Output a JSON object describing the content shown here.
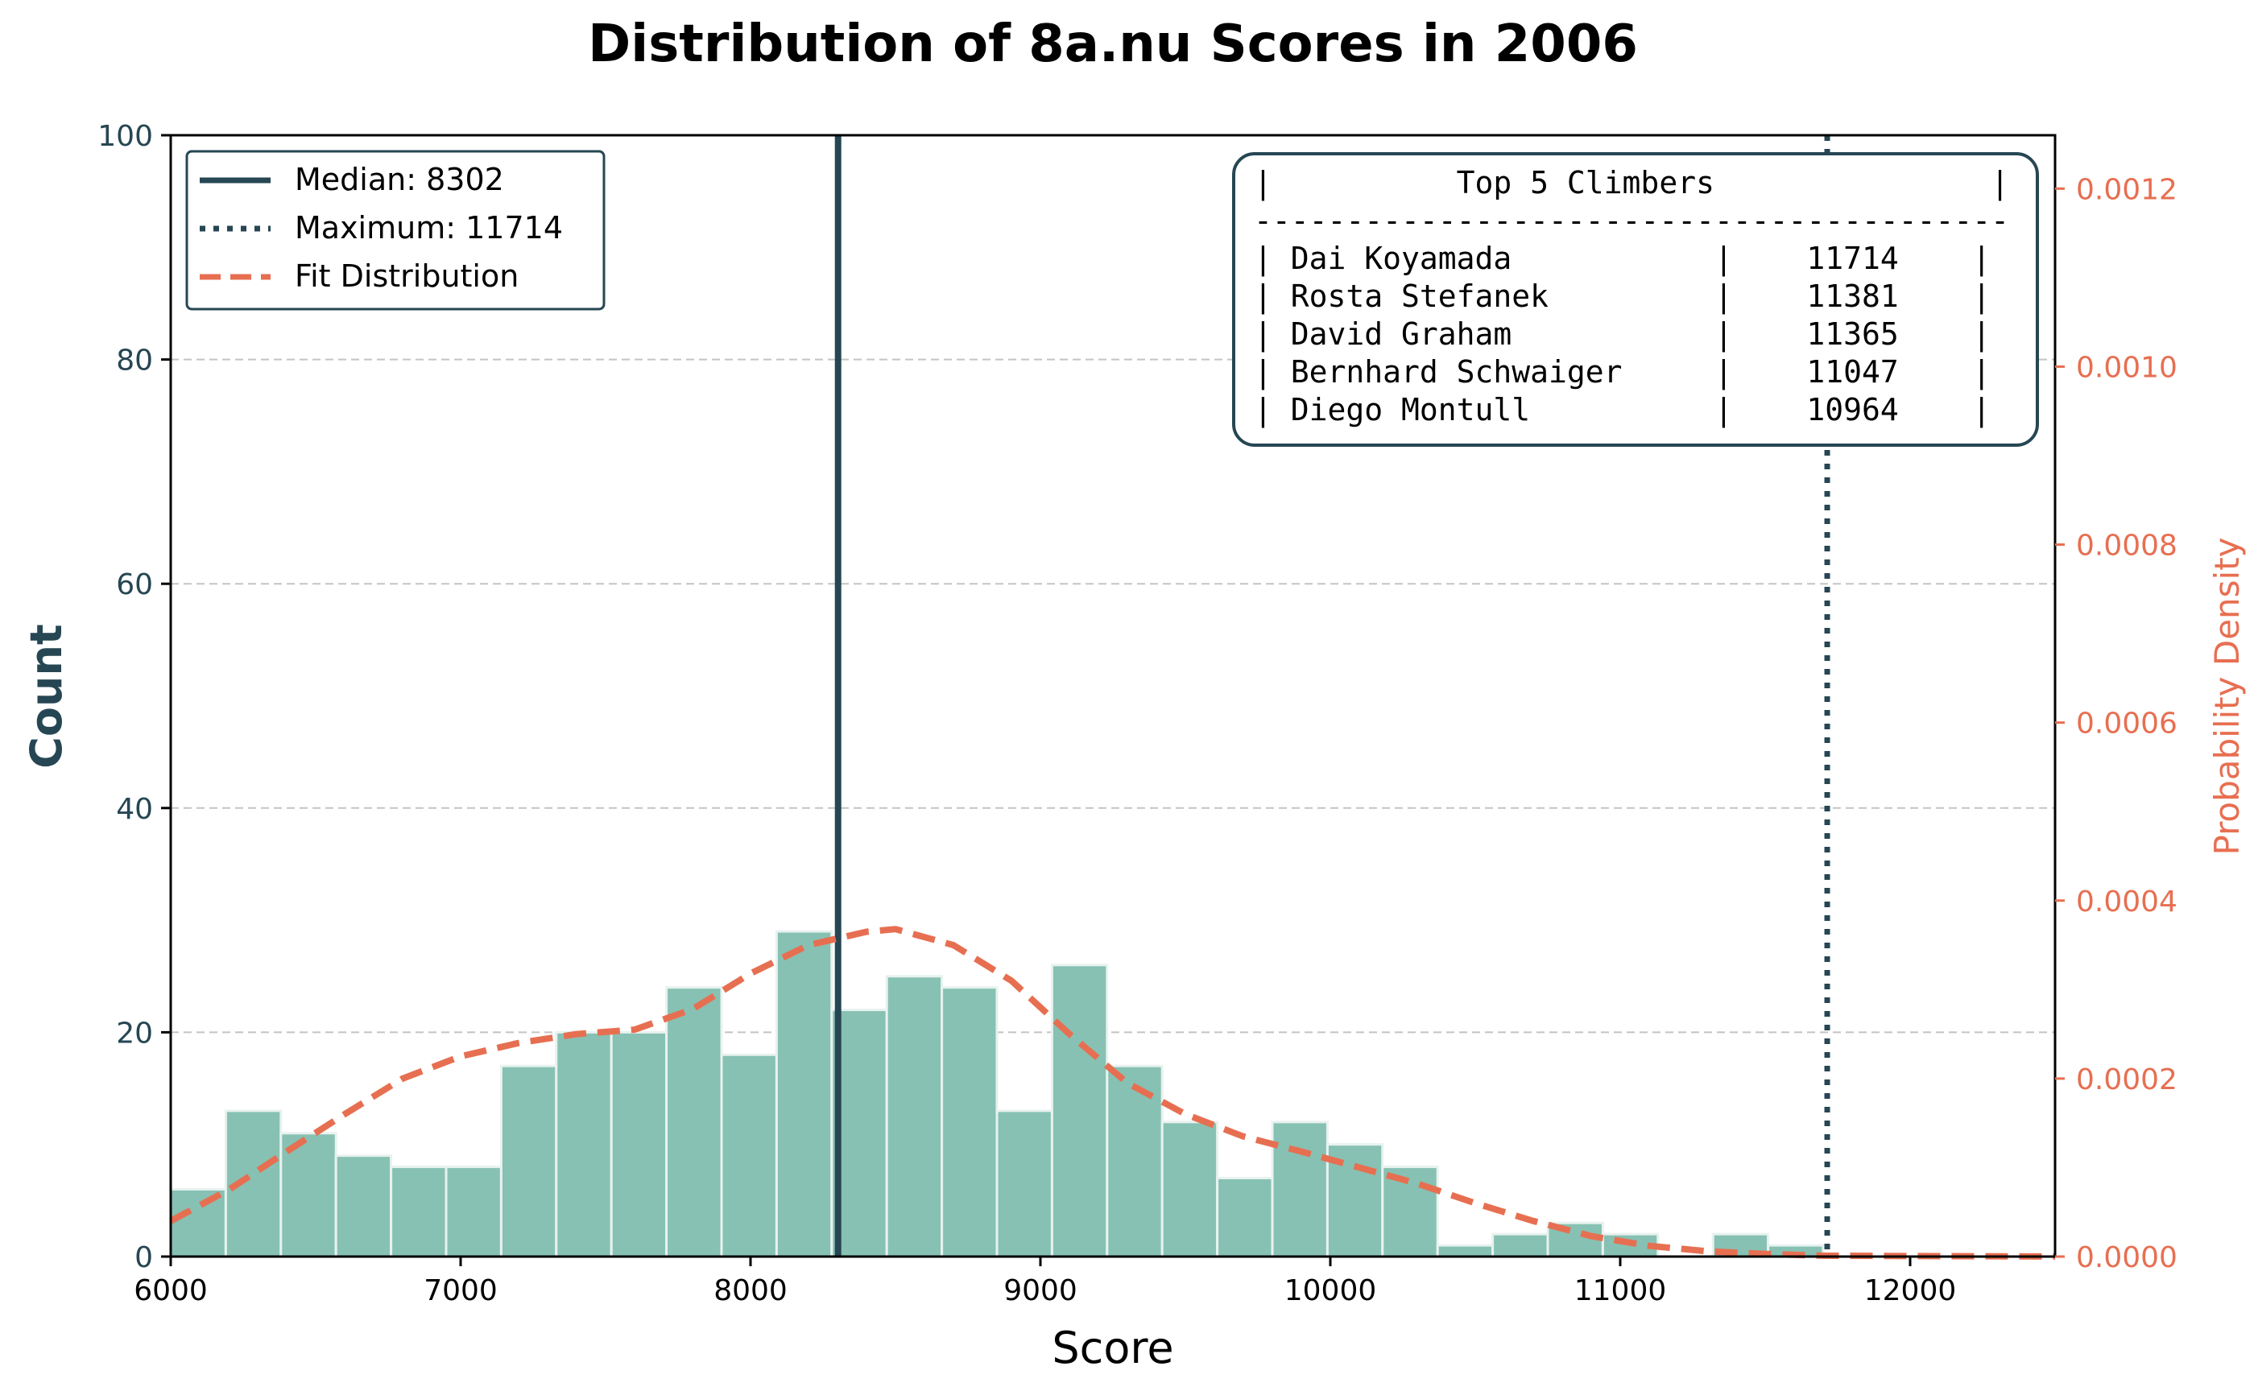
{
  "chart_data": {
    "type": "bar",
    "title": "Distribution of 8a.nu Scores in 2006",
    "xlabel": "Score",
    "ylabel": "Count",
    "y2label": "Probability Density",
    "xlim": [
      6000,
      12500
    ],
    "ylim": [
      0,
      100
    ],
    "y2lim": [
      0,
      0.00126
    ],
    "grid": "horizontal dashed",
    "xticks": [
      6000,
      7000,
      8000,
      9000,
      10000,
      11000,
      12000
    ],
    "yticks": [
      0,
      20,
      40,
      60,
      80,
      100
    ],
    "y2ticks": [
      "0.0000",
      "0.0002",
      "0.0004",
      "0.0006",
      "0.0008",
      "0.0010",
      "0.0012"
    ],
    "bin_width": 190,
    "bins": [
      {
        "start": 6000,
        "count": 6
      },
      {
        "start": 6190,
        "count": 13
      },
      {
        "start": 6380,
        "count": 11
      },
      {
        "start": 6570,
        "count": 9
      },
      {
        "start": 6760,
        "count": 8
      },
      {
        "start": 6950,
        "count": 8
      },
      {
        "start": 7140,
        "count": 17
      },
      {
        "start": 7330,
        "count": 20
      },
      {
        "start": 7520,
        "count": 20
      },
      {
        "start": 7710,
        "count": 24
      },
      {
        "start": 7900,
        "count": 18
      },
      {
        "start": 8090,
        "count": 29
      },
      {
        "start": 8280,
        "count": 22
      },
      {
        "start": 8470,
        "count": 25
      },
      {
        "start": 8660,
        "count": 24
      },
      {
        "start": 8850,
        "count": 13
      },
      {
        "start": 9040,
        "count": 26
      },
      {
        "start": 9230,
        "count": 17
      },
      {
        "start": 9420,
        "count": 12
      },
      {
        "start": 9610,
        "count": 7
      },
      {
        "start": 9800,
        "count": 12
      },
      {
        "start": 9990,
        "count": 10
      },
      {
        "start": 10180,
        "count": 8
      },
      {
        "start": 10370,
        "count": 1
      },
      {
        "start": 10560,
        "count": 2
      },
      {
        "start": 10750,
        "count": 3
      },
      {
        "start": 10940,
        "count": 2
      },
      {
        "start": 11130,
        "count": 0
      },
      {
        "start": 11320,
        "count": 2
      },
      {
        "start": 11510,
        "count": 1
      }
    ],
    "fit_curve": [
      {
        "x": 6000,
        "y": 4e-05
      },
      {
        "x": 6200,
        "y": 7.5e-05
      },
      {
        "x": 6400,
        "y": 0.000118
      },
      {
        "x": 6600,
        "y": 0.00016
      },
      {
        "x": 6800,
        "y": 0.0002
      },
      {
        "x": 7000,
        "y": 0.000225
      },
      {
        "x": 7200,
        "y": 0.00024
      },
      {
        "x": 7400,
        "y": 0.00025
      },
      {
        "x": 7600,
        "y": 0.000255
      },
      {
        "x": 7800,
        "y": 0.000278
      },
      {
        "x": 8000,
        "y": 0.000318
      },
      {
        "x": 8200,
        "y": 0.00035
      },
      {
        "x": 8400,
        "y": 0.000365
      },
      {
        "x": 8500,
        "y": 0.000368
      },
      {
        "x": 8700,
        "y": 0.00035
      },
      {
        "x": 8900,
        "y": 0.00031
      },
      {
        "x": 9100,
        "y": 0.00025
      },
      {
        "x": 9300,
        "y": 0.000195
      },
      {
        "x": 9500,
        "y": 0.00016
      },
      {
        "x": 9700,
        "y": 0.000135
      },
      {
        "x": 9900,
        "y": 0.000118
      },
      {
        "x": 10100,
        "y": 0.0001
      },
      {
        "x": 10300,
        "y": 8.2e-05
      },
      {
        "x": 10500,
        "y": 6e-05
      },
      {
        "x": 10700,
        "y": 4e-05
      },
      {
        "x": 10900,
        "y": 2.3e-05
      },
      {
        "x": 11100,
        "y": 1.2e-05
      },
      {
        "x": 11300,
        "y": 6e-06
      },
      {
        "x": 11500,
        "y": 3e-06
      },
      {
        "x": 11700,
        "y": 1e-06
      },
      {
        "x": 12000,
        "y": 5e-07
      },
      {
        "x": 12500,
        "y": 1e-07
      }
    ],
    "median": 8302,
    "maximum": 11714,
    "legend": {
      "position": "upper-left",
      "median_label": "Median: 8302",
      "max_label": "Maximum: 11714",
      "fit_label": "Fit Distribution"
    },
    "top5_box": {
      "position": "upper-right",
      "header_line": "|          Top 5 Climbers               |",
      "separator_line": "-----------------------------------------",
      "rows": [
        "| Dai Koyamada           |    11714    |",
        "| Rosta Stefanek         |    11381    |",
        "| David Graham           |    11365    |",
        "| Bernhard Schwaiger     |    11047    |",
        "| Diego Montull          |    10964    |"
      ]
    },
    "colors": {
      "bars": "#87c1b3",
      "bar_edge": "#e8f2ef",
      "dark": "#264653",
      "fit": "#e76f51",
      "grid": "#c4c4c4",
      "black": "#000000"
    }
  }
}
